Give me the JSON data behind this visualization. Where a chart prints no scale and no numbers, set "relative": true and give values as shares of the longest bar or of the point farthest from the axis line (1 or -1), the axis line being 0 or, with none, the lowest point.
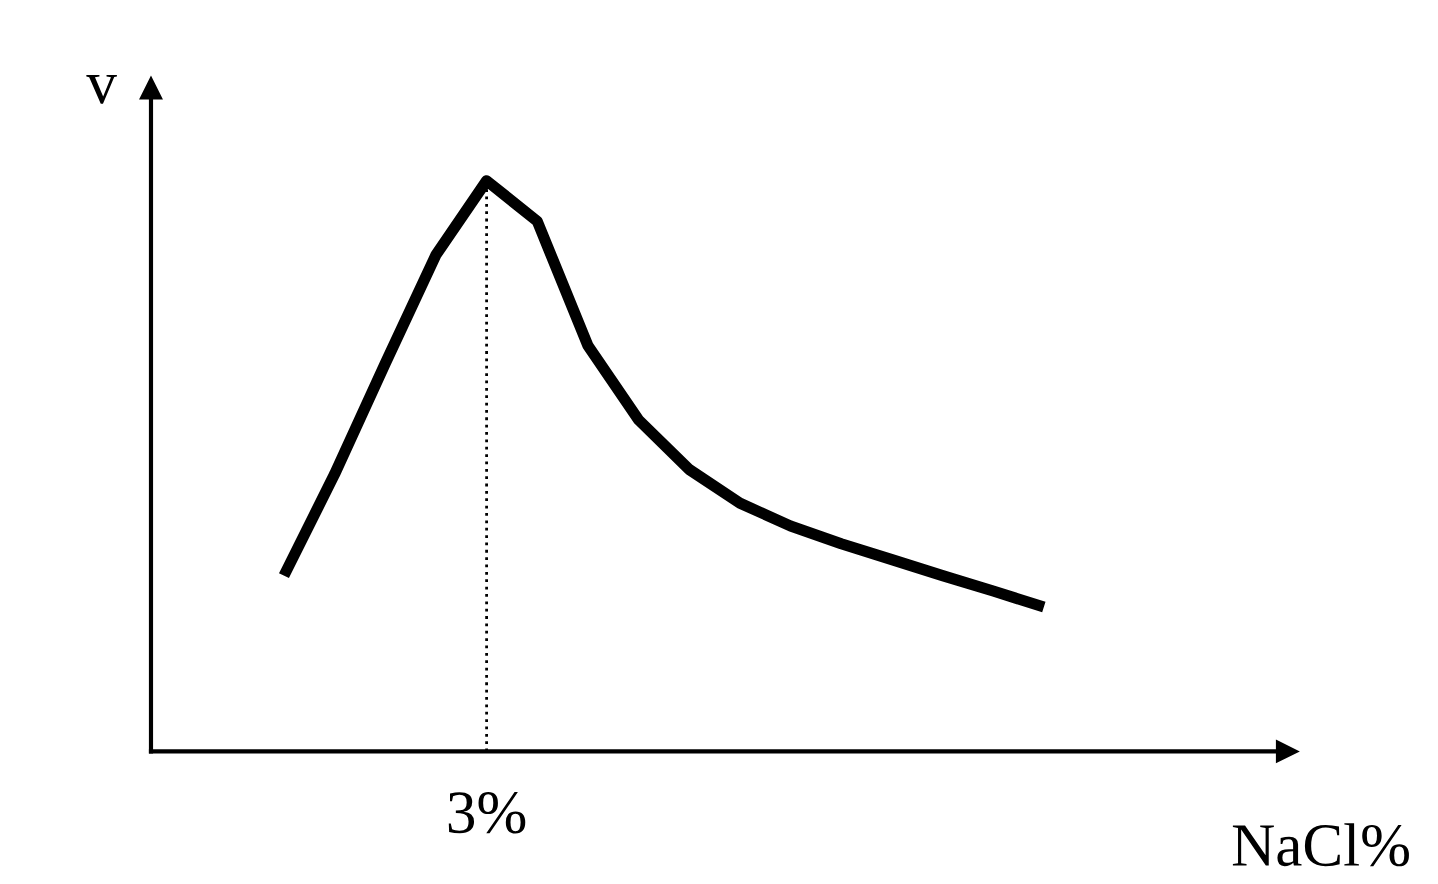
{
  "chart_data": {
    "type": "line",
    "xlabel": "NaCl%",
    "ylabel": "v",
    "relative": true,
    "categories": [
      null,
      null,
      null,
      null,
      null,
      null,
      null,
      null,
      null,
      null,
      null,
      null,
      null,
      null,
      null,
      null
    ],
    "series": [
      {
        "color": "#000000",
        "values": [
          0.308,
          0.486,
          0.68,
          0.87,
          1.0,
          0.929,
          0.711,
          0.581,
          0.494,
          0.435,
          0.395,
          0.364,
          0.336,
          0.308,
          0.281,
          0.253
        ]
      }
    ],
    "ref_lines": [
      {
        "axis": "x",
        "label": "3%",
        "color": "#000000",
        "line_style": "dotted"
      }
    ],
    "grid": false,
    "legend": false,
    "marker": "none",
    "line_style": "solid"
  }
}
